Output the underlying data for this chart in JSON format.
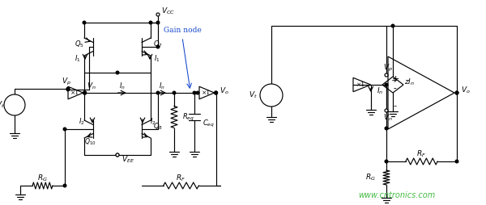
{
  "bg_color": "#ffffff",
  "line_color": "#000000",
  "watermark_color": "#44bb44",
  "watermark_text": "www.cntronics.com",
  "fig_width": 6.0,
  "fig_height": 2.54,
  "dpi": 100
}
